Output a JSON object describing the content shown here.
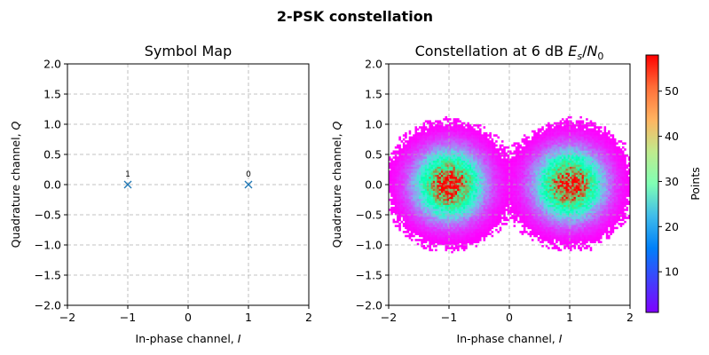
{
  "figure": {
    "suptitle": "2-PSK constellation"
  },
  "chart_data": [
    {
      "type": "scatter",
      "title": "Symbol Map",
      "xlabel": "In-phase channel, I",
      "ylabel": "Quadrature channel, Q",
      "xlim": [
        -2,
        2
      ],
      "ylim": [
        -2,
        2
      ],
      "xticks": [
        "−2",
        "−1",
        "0",
        "1",
        "2"
      ],
      "yticks": [
        "−2.0",
        "−1.5",
        "−1.0",
        "−0.5",
        "0.0",
        "0.5",
        "1.0",
        "1.5",
        "2.0"
      ],
      "grid": true,
      "marker": "x",
      "color": "#1f77b4",
      "points": [
        {
          "label": "1",
          "x": -1,
          "y": 0
        },
        {
          "label": "0",
          "x": 1,
          "y": 0
        }
      ]
    },
    {
      "type": "heatmap",
      "title": "Constellation at 6 dB Es/N0",
      "xlabel": "In-phase channel, I",
      "ylabel": "Quadrature channel, Q",
      "xlim": [
        -2,
        2
      ],
      "ylim": [
        -2,
        2
      ],
      "xticks": [
        "−2",
        "−1",
        "0",
        "1",
        "2"
      ],
      "yticks": [
        "−2.0",
        "−1.5",
        "−1.0",
        "−0.5",
        "0.0",
        "0.5",
        "1.0",
        "1.5",
        "2.0"
      ],
      "grid": true,
      "colormap": "rainbow",
      "clusters": [
        {
          "x": -1,
          "y": 0,
          "peak": 58,
          "spread": 0.35
        },
        {
          "x": 1,
          "y": 0,
          "peak": 58,
          "spread": 0.35
        }
      ],
      "colorbar": {
        "label": "Points",
        "range": [
          1,
          58
        ],
        "ticks": [
          "10",
          "20",
          "30",
          "40",
          "50"
        ]
      }
    }
  ]
}
